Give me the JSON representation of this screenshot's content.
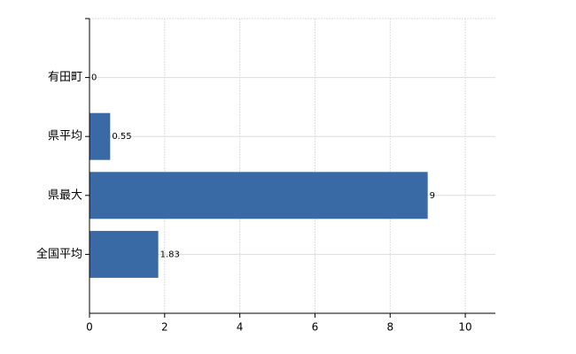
{
  "chart_data": {
    "type": "bar",
    "orientation": "horizontal",
    "categories": [
      "有田町",
      "県平均",
      "県最大",
      "全国平均"
    ],
    "values": [
      0,
      0.55,
      9,
      1.83
    ],
    "color": "#3a6aa6",
    "xlim": [
      0,
      10.8
    ],
    "xticks": [
      0,
      2,
      4,
      6,
      8,
      10
    ],
    "grid": true
  }
}
